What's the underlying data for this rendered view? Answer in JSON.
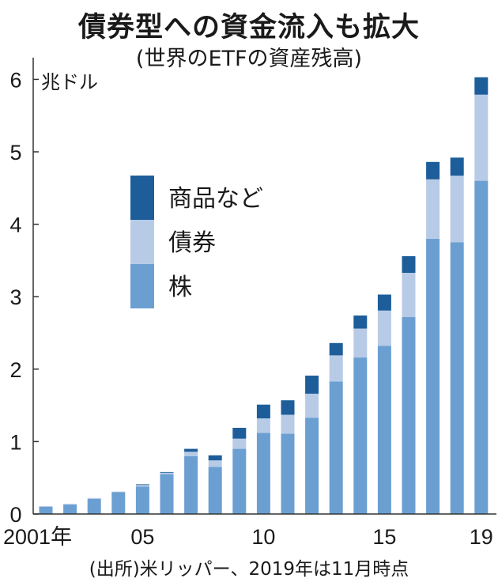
{
  "title": "債券型への資金流入も拡大",
  "subtitle": "(世界のETFの資産残高)",
  "source": "(出所)米リッパー、2019年は11月時点",
  "chart_data": {
    "type": "bar",
    "stacked": true,
    "unit_label": "兆ドル",
    "categories": [
      "2001",
      "2002",
      "2003",
      "2004",
      "2005",
      "2006",
      "2007",
      "2008",
      "2009",
      "2010",
      "2011",
      "2012",
      "2013",
      "2014",
      "2015",
      "2016",
      "2017",
      "2018",
      "2019"
    ],
    "x_tick_labels": [
      {
        "index": 0,
        "label": "2001年"
      },
      {
        "index": 4,
        "label": "05"
      },
      {
        "index": 9,
        "label": "10"
      },
      {
        "index": 14,
        "label": "15"
      },
      {
        "index": 18,
        "label": "19"
      }
    ],
    "series": [
      {
        "name": "株",
        "color": "#6b9fd2",
        "values": [
          0.1,
          0.13,
          0.21,
          0.3,
          0.38,
          0.55,
          0.8,
          0.65,
          0.9,
          1.12,
          1.11,
          1.33,
          1.83,
          2.16,
          2.32,
          2.72,
          3.8,
          3.75,
          4.6
        ]
      },
      {
        "name": "債券",
        "color": "#b7cbe6",
        "values": [
          0.01,
          0.01,
          0.01,
          0.01,
          0.02,
          0.02,
          0.06,
          0.09,
          0.14,
          0.2,
          0.26,
          0.33,
          0.36,
          0.4,
          0.49,
          0.61,
          0.82,
          0.92,
          1.19
        ]
      },
      {
        "name": "商品など",
        "color": "#1d5e9a",
        "values": [
          0.0,
          0.0,
          0.0,
          0.0,
          0.01,
          0.01,
          0.04,
          0.07,
          0.15,
          0.19,
          0.2,
          0.25,
          0.17,
          0.18,
          0.22,
          0.23,
          0.24,
          0.25,
          0.24
        ]
      }
    ],
    "legend": [
      {
        "name": "商品など",
        "color": "#1d5e9a"
      },
      {
        "name": "債券",
        "color": "#b7cbe6"
      },
      {
        "name": "株",
        "color": "#6b9fd2"
      }
    ],
    "yticks": [
      "0",
      "1",
      "2",
      "3",
      "4",
      "5",
      "6"
    ],
    "ylim": [
      0,
      6.3
    ],
    "xlabel": "",
    "ylabel": ""
  }
}
